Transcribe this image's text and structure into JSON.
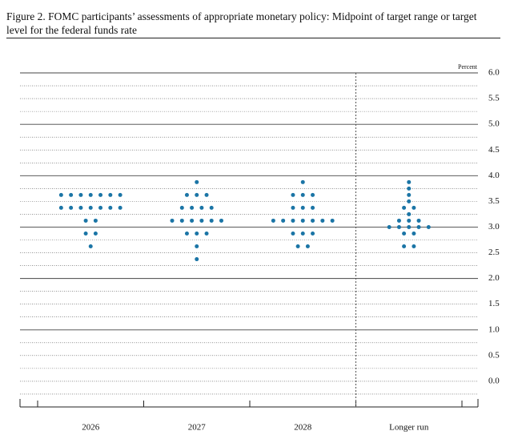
{
  "chart_data": {
    "type": "dot",
    "title": "Figure 2. FOMC participants’ assessments of appropriate monetary policy: Midpoint of target range or target level for the federal funds rate",
    "y_label": "Percent",
    "categories": [
      "2026",
      "2027",
      "2028",
      "Longer run"
    ],
    "color": "#1b75a6",
    "values": [
      [
        3.625,
        3.625,
        3.625,
        3.625,
        3.625,
        3.625,
        3.625,
        3.375,
        3.375,
        3.375,
        3.375,
        3.375,
        3.375,
        3.375,
        3.125,
        3.125,
        2.875,
        2.875,
        2.625
      ],
      [
        3.875,
        3.625,
        3.625,
        3.625,
        3.375,
        3.375,
        3.375,
        3.375,
        3.125,
        3.125,
        3.125,
        3.125,
        3.125,
        3.125,
        2.875,
        2.875,
        2.875,
        2.625,
        2.375
      ],
      [
        3.875,
        3.625,
        3.625,
        3.625,
        3.375,
        3.375,
        3.375,
        3.125,
        3.125,
        3.125,
        3.125,
        3.125,
        3.125,
        3.125,
        2.875,
        2.875,
        2.875,
        2.625,
        2.625
      ],
      [
        3.875,
        3.75,
        3.625,
        3.5,
        3.375,
        3.375,
        3.25,
        3.125,
        3.125,
        3.125,
        3,
        3,
        3,
        3,
        3,
        2.875,
        2.875,
        2.625,
        2.625
      ]
    ],
    "ylim": [
      -0.5,
      6
    ],
    "yticks": [
      {
        "value": 0,
        "label": "0.0"
      },
      0.5,
      {
        "value": 1,
        "label": "1.0"
      },
      1.5,
      {
        "value": 2,
        "label": "2.0"
      },
      2.5,
      {
        "value": 3,
        "label": "3.0"
      },
      3.5,
      {
        "value": 4,
        "label": "4.0"
      },
      4.5,
      {
        "value": 5,
        "label": "5.0"
      },
      5.5,
      {
        "value": 6,
        "label": "6.0"
      }
    ],
    "grid": true
  }
}
